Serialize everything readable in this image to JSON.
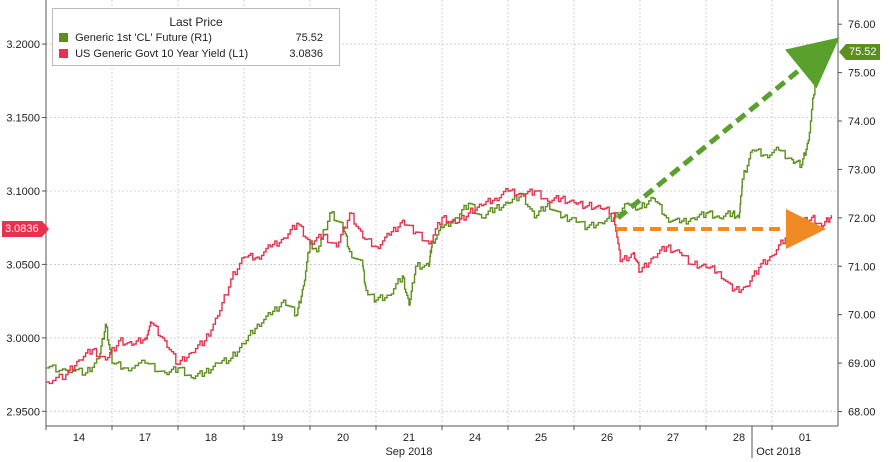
{
  "colors": {
    "oil": "#5d8f1e",
    "yield": "#e8314f",
    "arrow_up": "#5aa02c",
    "arrow_flat": "#f08a24",
    "grid": "#c8c8c8"
  },
  "legend": {
    "title": "Last Price",
    "items": [
      {
        "label": "Generic 1st 'CL' Future  (R1)",
        "value": "75.52",
        "color": "#5d8f1e"
      },
      {
        "label": "US Generic Govt 10 Year Yield  (L1)",
        "value": "3.0836",
        "color": "#e8314f"
      }
    ]
  },
  "badges": {
    "left_value": "3.0836",
    "right_value": "75.52"
  },
  "axes": {
    "left_ticks": [
      "2.9500",
      "3.0000",
      "3.0500",
      "3.1000",
      "3.1500",
      "3.2000"
    ],
    "right_ticks": [
      "68.00",
      "69.00",
      "70.00",
      "71.00",
      "72.00",
      "73.00",
      "74.00",
      "75.00",
      "76.00"
    ],
    "day_labels": [
      "14",
      "17",
      "18",
      "19",
      "20",
      "21",
      "24",
      "25",
      "26",
      "27",
      "28",
      "01"
    ],
    "month_labels": [
      "Sep 2018",
      "Oct 2018"
    ]
  },
  "chart_data": {
    "type": "line",
    "title": "",
    "x": [
      "14",
      "17",
      "18",
      "19",
      "20",
      "21",
      "24",
      "25",
      "26",
      "27",
      "28",
      "01"
    ],
    "ylim_left": [
      2.94,
      3.23
    ],
    "ylim_right": [
      67.7,
      76.5
    ],
    "grid": true,
    "legend_position": "top-left",
    "series": [
      {
        "name": "Generic 1st 'CL' Future (R1)",
        "axis": "right",
        "color": "#5d8f1e",
        "points": [
          [
            0.0,
            68.9
          ],
          [
            0.3,
            68.85
          ],
          [
            0.6,
            68.8
          ],
          [
            0.8,
            69.1
          ],
          [
            0.9,
            69.8
          ],
          [
            1.0,
            69.0
          ],
          [
            1.2,
            68.9
          ],
          [
            1.5,
            69.0
          ],
          [
            1.8,
            68.8
          ],
          [
            2.0,
            68.9
          ],
          [
            2.2,
            68.7
          ],
          [
            2.4,
            68.8
          ],
          [
            2.6,
            69.0
          ],
          [
            2.8,
            69.1
          ],
          [
            3.0,
            69.4
          ],
          [
            3.2,
            69.8
          ],
          [
            3.4,
            70.0
          ],
          [
            3.6,
            70.3
          ],
          [
            3.8,
            70.0
          ],
          [
            3.9,
            70.6
          ],
          [
            4.0,
            71.5
          ],
          [
            4.1,
            71.3
          ],
          [
            4.3,
            72.1
          ],
          [
            4.5,
            71.8
          ],
          [
            4.6,
            71.3
          ],
          [
            4.8,
            71.0
          ],
          [
            4.85,
            70.5
          ],
          [
            5.0,
            70.3
          ],
          [
            5.2,
            70.4
          ],
          [
            5.4,
            70.8
          ],
          [
            5.5,
            70.2
          ],
          [
            5.6,
            71.0
          ],
          [
            5.8,
            71.0
          ],
          [
            5.85,
            71.5
          ],
          [
            6.0,
            71.8
          ],
          [
            6.2,
            72.0
          ],
          [
            6.4,
            72.3
          ],
          [
            6.6,
            72.0
          ],
          [
            6.8,
            72.2
          ],
          [
            7.0,
            72.3
          ],
          [
            7.2,
            72.5
          ],
          [
            7.4,
            72.0
          ],
          [
            7.6,
            72.3
          ],
          [
            7.8,
            72.0
          ],
          [
            8.0,
            72.0
          ],
          [
            8.2,
            71.8
          ],
          [
            8.4,
            71.9
          ],
          [
            8.6,
            72.0
          ],
          [
            8.8,
            72.3
          ],
          [
            9.0,
            72.2
          ],
          [
            9.2,
            72.4
          ],
          [
            9.4,
            72.0
          ],
          [
            9.6,
            71.9
          ],
          [
            9.8,
            72.0
          ],
          [
            10.0,
            72.1
          ],
          [
            10.2,
            72.0
          ],
          [
            10.4,
            72.1
          ],
          [
            10.5,
            72.0
          ],
          [
            10.55,
            72.8
          ],
          [
            10.7,
            73.4
          ],
          [
            10.9,
            73.3
          ],
          [
            11.1,
            73.4
          ],
          [
            11.3,
            73.2
          ],
          [
            11.45,
            73.1
          ],
          [
            11.55,
            73.6
          ],
          [
            11.65,
            74.8
          ],
          [
            11.75,
            75.4
          ],
          [
            11.85,
            75.6
          ],
          [
            11.95,
            75.52
          ]
        ]
      },
      {
        "name": "US Generic Govt 10 Year Yield (L1)",
        "axis": "left",
        "color": "#e8314f",
        "points": [
          [
            0.0,
            2.97
          ],
          [
            0.3,
            2.975
          ],
          [
            0.5,
            2.985
          ],
          [
            0.7,
            2.992
          ],
          [
            0.9,
            2.985
          ],
          [
            1.1,
            2.998
          ],
          [
            1.3,
            2.995
          ],
          [
            1.5,
            3.0
          ],
          [
            1.6,
            3.01
          ],
          [
            1.8,
            2.998
          ],
          [
            2.0,
            2.982
          ],
          [
            2.2,
            2.99
          ],
          [
            2.4,
            2.998
          ],
          [
            2.6,
            3.015
          ],
          [
            2.8,
            3.04
          ],
          [
            3.0,
            3.055
          ],
          [
            3.2,
            3.055
          ],
          [
            3.4,
            3.062
          ],
          [
            3.6,
            3.068
          ],
          [
            3.8,
            3.078
          ],
          [
            4.0,
            3.064
          ],
          [
            4.2,
            3.07
          ],
          [
            4.4,
            3.062
          ],
          [
            4.6,
            3.085
          ],
          [
            4.8,
            3.068
          ],
          [
            5.0,
            3.062
          ],
          [
            5.2,
            3.07
          ],
          [
            5.4,
            3.08
          ],
          [
            5.6,
            3.072
          ],
          [
            5.8,
            3.064
          ],
          [
            6.0,
            3.082
          ],
          [
            6.2,
            3.078
          ],
          [
            6.4,
            3.085
          ],
          [
            6.6,
            3.09
          ],
          [
            6.8,
            3.095
          ],
          [
            7.0,
            3.1
          ],
          [
            7.2,
            3.098
          ],
          [
            7.4,
            3.1
          ],
          [
            7.6,
            3.093
          ],
          [
            7.8,
            3.095
          ],
          [
            8.0,
            3.092
          ],
          [
            8.2,
            3.09
          ],
          [
            8.4,
            3.088
          ],
          [
            8.6,
            3.085
          ],
          [
            8.7,
            3.052
          ],
          [
            8.9,
            3.058
          ],
          [
            9.0,
            3.045
          ],
          [
            9.2,
            3.055
          ],
          [
            9.4,
            3.062
          ],
          [
            9.6,
            3.058
          ],
          [
            9.8,
            3.05
          ],
          [
            10.0,
            3.048
          ],
          [
            10.2,
            3.045
          ],
          [
            10.4,
            3.032
          ],
          [
            10.6,
            3.035
          ],
          [
            10.8,
            3.048
          ],
          [
            11.0,
            3.056
          ],
          [
            11.2,
            3.068
          ],
          [
            11.4,
            3.078
          ],
          [
            11.6,
            3.082
          ],
          [
            11.75,
            3.075
          ],
          [
            11.9,
            3.0836
          ]
        ]
      }
    ]
  }
}
